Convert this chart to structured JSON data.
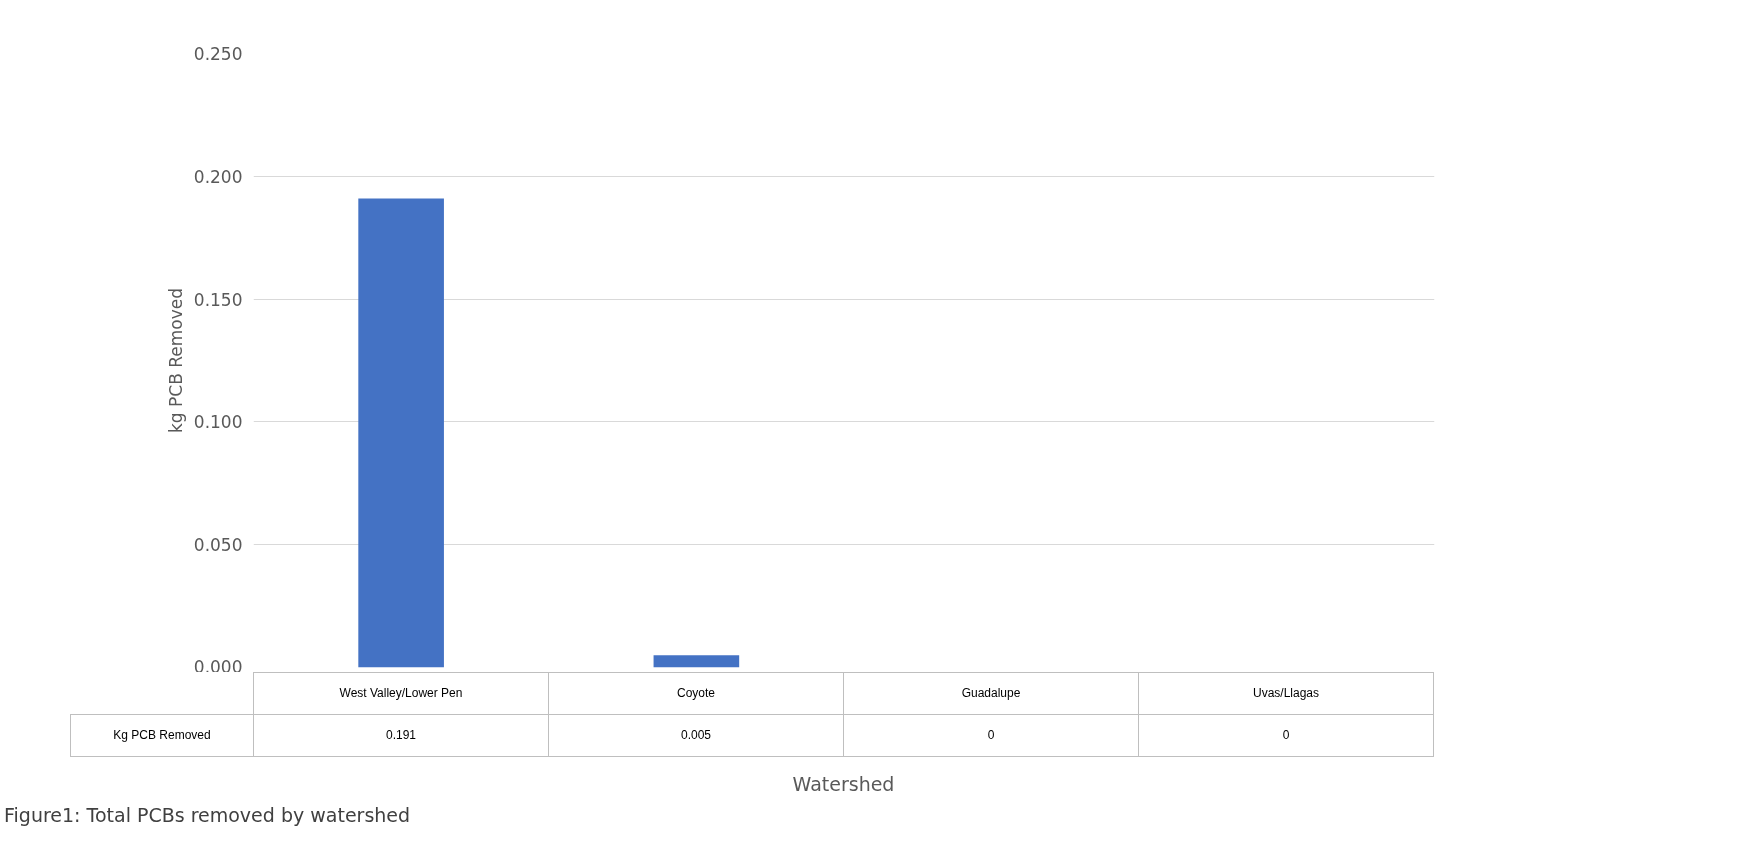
{
  "chart_data": {
    "type": "bar",
    "categories": [
      "West Valley/Lower Pen",
      "Coyote",
      "Guadalupe",
      "Uvas/Llagas"
    ],
    "series": [
      {
        "name": "Kg PCB Removed",
        "color": "#4472c4",
        "values": [
          0.191,
          0.005,
          0,
          0
        ]
      }
    ],
    "xlabel": "Watershed",
    "ylabel": "kg PCB Removed",
    "ylim": [
      0,
      0.25
    ],
    "yticks": [
      {
        "value": 0,
        "label": "0.000"
      },
      {
        "value": 0.05,
        "label": "0.050"
      },
      {
        "value": 0.1,
        "label": "0.100"
      },
      {
        "value": 0.15,
        "label": "0.150"
      },
      {
        "value": 0.2,
        "label": "0.200"
      },
      {
        "value": 0.25,
        "label": "0.250"
      }
    ],
    "grid": "y",
    "data_labels": true,
    "annotations": [
      "Figure1: Total PCBs removed by watershed"
    ]
  }
}
